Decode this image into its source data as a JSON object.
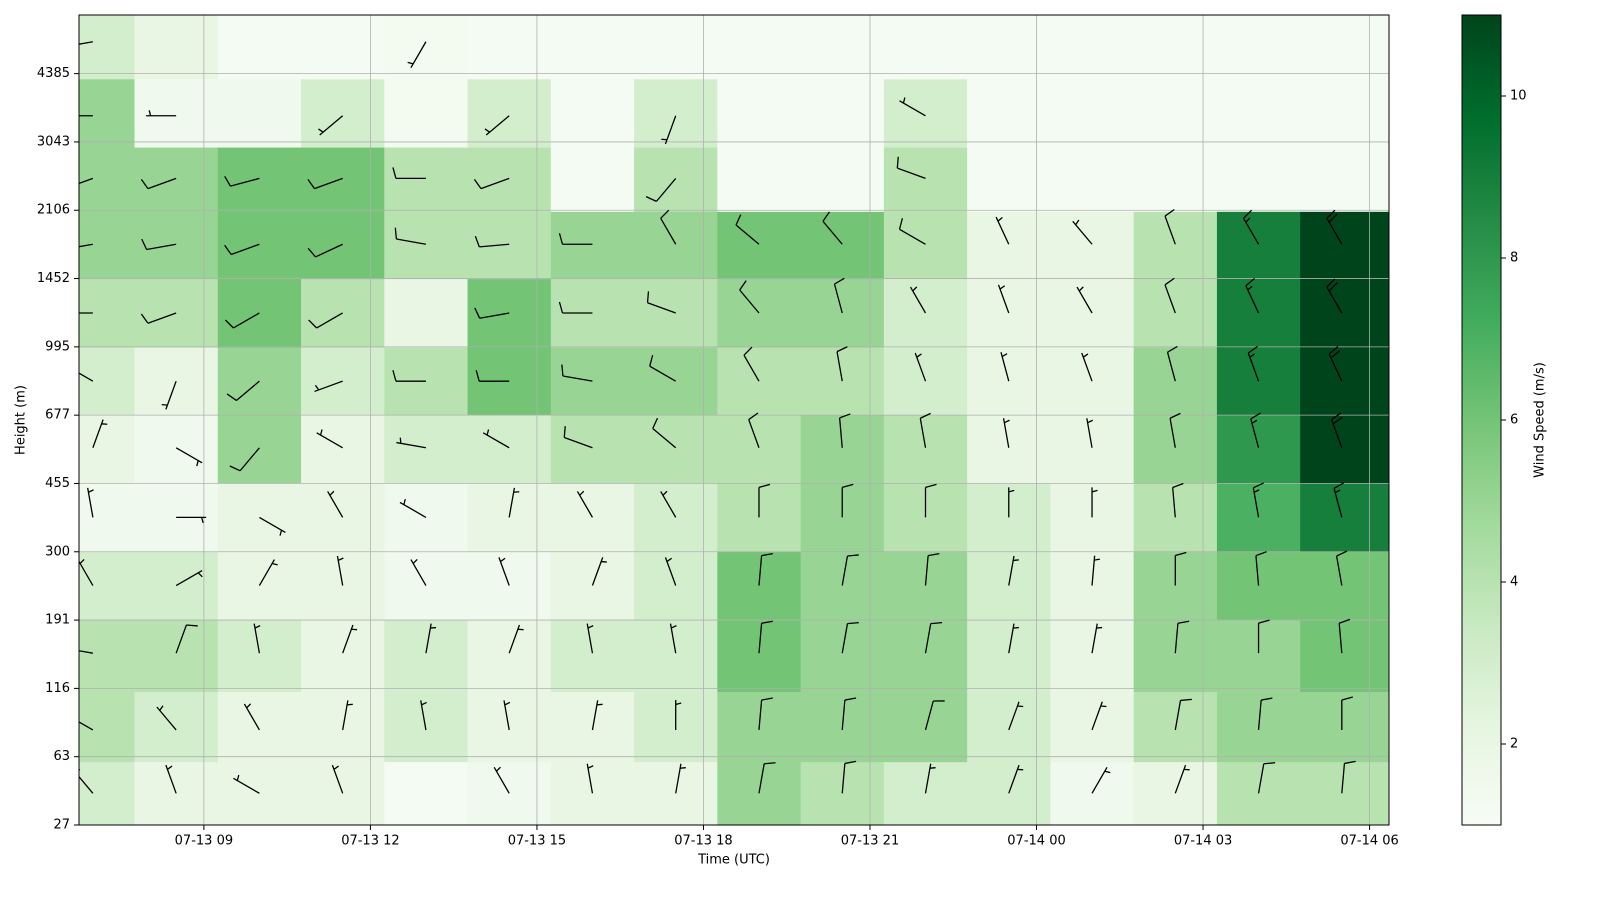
{
  "chart_data": {
    "type": "barbs",
    "xlabel": "Time (UTC)",
    "ylabel": "Height (m)",
    "colorbar_label": "Wind Speed (m/s)",
    "cmap": "Greens",
    "grid": true,
    "xlim": [
      6.75,
      30.35
    ],
    "xticks": [
      {
        "value": 9,
        "label": "07-13 09"
      },
      {
        "value": 12,
        "label": "07-13 12"
      },
      {
        "value": 15,
        "label": "07-13 15"
      },
      {
        "value": 18,
        "label": "07-13 18"
      },
      {
        "value": 21,
        "label": "07-13 21"
      },
      {
        "value": 24,
        "label": "07-14 00"
      },
      {
        "value": 27,
        "label": "07-14 03"
      },
      {
        "value": 30,
        "label": "07-14 06"
      }
    ],
    "ylim": [
      27,
      6000
    ],
    "yticks": [
      27,
      63,
      116,
      191,
      300,
      455,
      677,
      995,
      1452,
      2106,
      3043,
      4385
    ],
    "clim": [
      1,
      11
    ],
    "cticks": [
      2,
      4,
      6,
      8,
      10
    ],
    "x": [
      7,
      8.5,
      10,
      11.5,
      13,
      14.5,
      16,
      17.5,
      19,
      20.5,
      22,
      23.5,
      25,
      26.5,
      28,
      29.5
    ],
    "heights": [
      40,
      80,
      150,
      240,
      370,
      560,
      820,
      1200,
      1750,
      2500,
      3500,
      5200
    ],
    "values": [
      [
        3,
        4,
        4,
        3,
        1.5,
        2,
        3,
        4,
        5,
        5,
        5,
        3
      ],
      [
        2,
        3,
        4,
        3,
        1.5,
        1.5,
        2,
        4,
        5,
        5,
        1.5,
        2
      ],
      [
        2,
        2,
        3,
        2,
        2,
        5,
        5,
        6,
        6,
        6,
        1.5,
        1.2
      ],
      [
        2,
        2,
        2,
        2,
        2,
        2,
        3,
        4,
        6,
        6,
        3,
        1.2
      ],
      [
        1.2,
        3,
        3,
        1.5,
        1.5,
        3,
        4,
        2,
        4,
        4,
        1.3,
        1.3
      ],
      [
        1.5,
        2,
        2,
        1.5,
        2,
        3,
        6,
        6,
        4,
        4,
        3,
        1.2
      ],
      [
        2,
        2,
        3,
        2,
        2,
        4,
        5,
        4,
        5,
        1.2,
        1.2,
        1.2
      ],
      [
        2,
        3,
        3,
        3,
        3,
        4,
        5,
        4,
        5,
        4,
        3,
        1.2
      ],
      [
        5,
        5,
        6,
        6,
        4,
        4,
        4,
        5,
        6,
        1.2,
        1.2,
        1.2
      ],
      [
        4,
        5,
        5,
        5,
        5,
        5,
        4,
        5,
        6,
        1.2,
        1.2,
        1.2
      ],
      [
        3,
        5,
        5,
        5,
        4,
        4,
        3,
        3,
        4,
        4,
        3,
        1.2
      ],
      [
        3,
        3,
        3,
        3,
        3,
        2,
        2,
        2,
        2,
        1.2,
        1.2,
        1.2
      ],
      [
        1.5,
        2,
        2,
        2,
        2,
        2,
        2,
        2,
        2,
        1.2,
        1.2,
        1.2
      ],
      [
        2,
        4,
        5,
        5,
        4,
        5,
        5,
        4,
        4,
        1.2,
        1.2,
        1.2
      ],
      [
        4,
        5,
        5,
        6,
        7,
        8,
        9,
        9,
        9,
        1.2,
        1.2,
        1.2
      ],
      [
        4,
        5,
        6,
        6,
        9,
        11,
        11,
        11,
        11,
        1.2,
        1.2,
        1.2
      ]
    ],
    "directions": [
      [
        320,
        300,
        280,
        330,
        350,
        20,
        300,
        270,
        260,
        250,
        270,
        260
      ],
      [
        340,
        320,
        20,
        60,
        90,
        120,
        200,
        250,
        260,
        250,
        270,
        null
      ],
      [
        300,
        330,
        350,
        30,
        120,
        220,
        230,
        240,
        250,
        255,
        null,
        null
      ],
      [
        340,
        10,
        20,
        350,
        330,
        300,
        250,
        240,
        245,
        250,
        230,
        null
      ],
      [
        null,
        350,
        10,
        330,
        300,
        280,
        270,
        null,
        280,
        270,
        null,
        210
      ],
      [
        330,
        350,
        20,
        340,
        10,
        300,
        270,
        260,
        265,
        250,
        230,
        null
      ],
      [
        350,
        10,
        350,
        20,
        330,
        290,
        280,
        270,
        270,
        null,
        null,
        null
      ],
      [
        10,
        0,
        350,
        340,
        330,
        310,
        300,
        290,
        330,
        220,
        200,
        null
      ],
      [
        10,
        5,
        5,
        5,
        0,
        340,
        330,
        320,
        310,
        null,
        null,
        null
      ],
      [
        5,
        5,
        10,
        10,
        0,
        355,
        350,
        345,
        320,
        null,
        null,
        null
      ],
      [
        10,
        15,
        10,
        5,
        0,
        350,
        340,
        330,
        300,
        290,
        300,
        null
      ],
      [
        20,
        20,
        10,
        10,
        0,
        350,
        345,
        340,
        335,
        null,
        null,
        null
      ],
      [
        30,
        20,
        10,
        5,
        0,
        350,
        340,
        330,
        320,
        null,
        null,
        null
      ],
      [
        20,
        10,
        5,
        0,
        355,
        350,
        345,
        340,
        340,
        null,
        null,
        null
      ],
      [
        10,
        5,
        0,
        355,
        350,
        345,
        340,
        335,
        330,
        null,
        null,
        null
      ],
      [
        5,
        0,
        355,
        350,
        345,
        340,
        335,
        330,
        330,
        null,
        null,
        null
      ]
    ]
  }
}
